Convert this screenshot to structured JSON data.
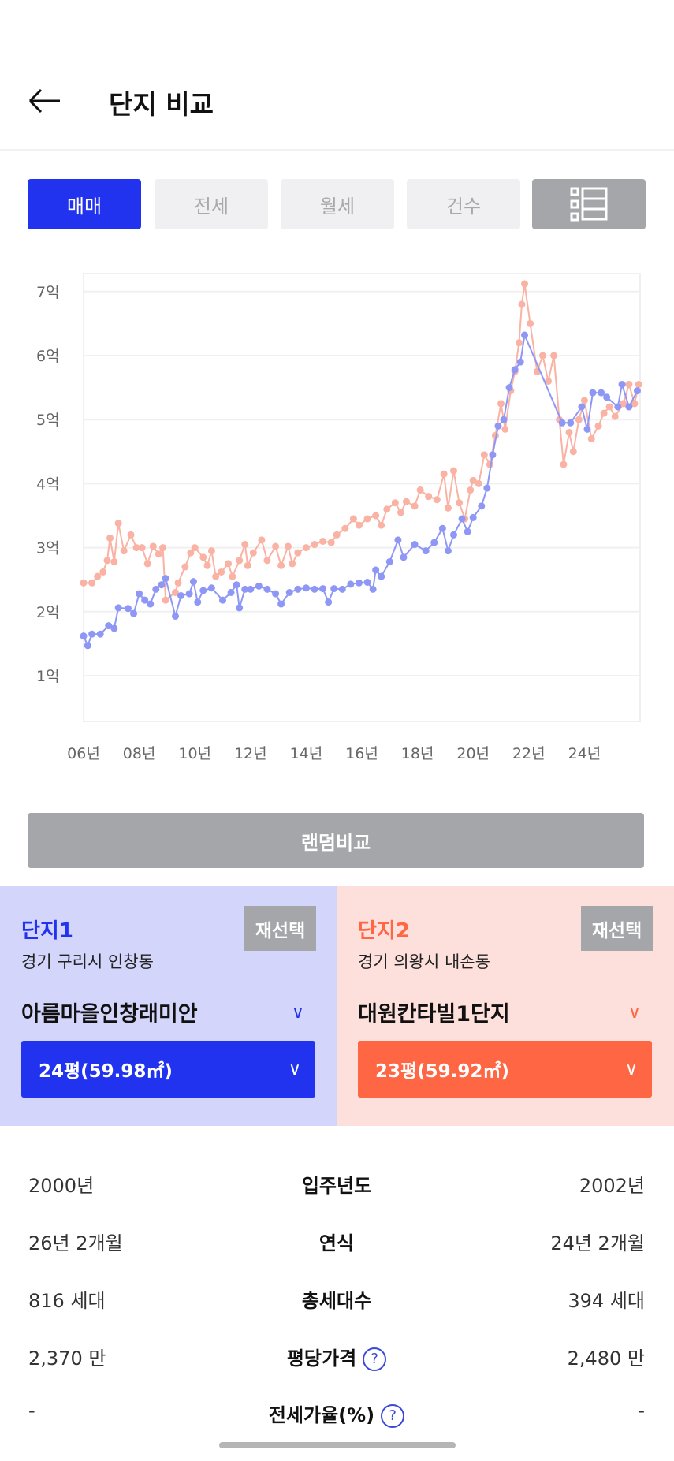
{
  "header": {
    "title": "단지 비교",
    "back_icon": "arrow-left-icon"
  },
  "tabs": [
    {
      "label": "매매",
      "active": true
    },
    {
      "label": "전세"
    },
    {
      "label": "월세"
    },
    {
      "label": "건수"
    }
  ],
  "list_view_icon": "list-view-icon",
  "chart_data": {
    "type": "line",
    "y_ticks": [
      "1억",
      "2억",
      "3억",
      "4억",
      "5억",
      "6억",
      "7억"
    ],
    "x_ticks": [
      "06년",
      "08년",
      "10년",
      "12년",
      "14년",
      "16년",
      "18년",
      "20년",
      "22년",
      "24년"
    ],
    "xlim": [
      2006,
      2026
    ],
    "ylim": [
      0.3,
      7.35
    ],
    "grid": true,
    "series": [
      {
        "color": "#8e97f5",
        "points": [
          [
            2006.0,
            1.62
          ],
          [
            2006.15,
            1.47
          ],
          [
            2006.3,
            1.65
          ],
          [
            2006.6,
            1.65
          ],
          [
            2006.9,
            1.78
          ],
          [
            2007.1,
            1.74
          ],
          [
            2007.25,
            2.06
          ],
          [
            2007.6,
            2.05
          ],
          [
            2007.8,
            1.97
          ],
          [
            2008.0,
            2.28
          ],
          [
            2008.2,
            2.18
          ],
          [
            2008.4,
            2.12
          ],
          [
            2008.6,
            2.35
          ],
          [
            2008.8,
            2.42
          ],
          [
            2008.95,
            2.52
          ],
          [
            2009.3,
            1.93
          ],
          [
            2009.5,
            2.25
          ],
          [
            2009.8,
            2.28
          ],
          [
            2009.95,
            2.47
          ],
          [
            2010.1,
            2.15
          ],
          [
            2010.3,
            2.33
          ],
          [
            2010.6,
            2.37
          ],
          [
            2011.0,
            2.18
          ],
          [
            2011.3,
            2.3
          ],
          [
            2011.5,
            2.42
          ],
          [
            2011.6,
            2.06
          ],
          [
            2011.8,
            2.35
          ],
          [
            2012.0,
            2.35
          ],
          [
            2012.3,
            2.4
          ],
          [
            2012.6,
            2.35
          ],
          [
            2012.9,
            2.28
          ],
          [
            2013.1,
            2.12
          ],
          [
            2013.4,
            2.3
          ],
          [
            2013.7,
            2.35
          ],
          [
            2014.0,
            2.37
          ],
          [
            2014.3,
            2.35
          ],
          [
            2014.6,
            2.36
          ],
          [
            2014.8,
            2.15
          ],
          [
            2015.0,
            2.36
          ],
          [
            2015.3,
            2.35
          ],
          [
            2015.6,
            2.43
          ],
          [
            2015.9,
            2.45
          ],
          [
            2016.2,
            2.46
          ],
          [
            2016.4,
            2.35
          ],
          [
            2016.5,
            2.65
          ],
          [
            2016.7,
            2.55
          ],
          [
            2017.0,
            2.78
          ],
          [
            2017.3,
            3.12
          ],
          [
            2017.5,
            2.85
          ],
          [
            2017.9,
            3.05
          ],
          [
            2018.3,
            2.95
          ],
          [
            2018.6,
            3.08
          ],
          [
            2018.9,
            3.3
          ],
          [
            2019.1,
            2.95
          ],
          [
            2019.3,
            3.2
          ],
          [
            2019.6,
            3.45
          ],
          [
            2019.8,
            3.25
          ],
          [
            2020.0,
            3.47
          ],
          [
            2020.3,
            3.65
          ],
          [
            2020.5,
            3.93
          ],
          [
            2020.7,
            4.45
          ],
          [
            2020.9,
            4.9
          ],
          [
            2021.1,
            5.0
          ],
          [
            2021.3,
            5.5
          ],
          [
            2021.5,
            5.78
          ],
          [
            2021.7,
            5.9
          ],
          [
            2021.85,
            6.32
          ],
          [
            2023.2,
            4.95
          ],
          [
            2023.5,
            4.95
          ],
          [
            2023.9,
            5.2
          ],
          [
            2024.1,
            4.85
          ],
          [
            2024.3,
            5.42
          ],
          [
            2024.6,
            5.42
          ],
          [
            2024.8,
            5.35
          ],
          [
            2025.2,
            5.2
          ],
          [
            2025.35,
            5.55
          ],
          [
            2025.6,
            5.2
          ],
          [
            2025.9,
            5.45
          ]
        ]
      },
      {
        "color": "#f9b2a3",
        "points": [
          [
            2006.0,
            2.45
          ],
          [
            2006.3,
            2.45
          ],
          [
            2006.5,
            2.55
          ],
          [
            2006.7,
            2.62
          ],
          [
            2006.85,
            2.8
          ],
          [
            2006.95,
            3.15
          ],
          [
            2007.1,
            2.78
          ],
          [
            2007.25,
            3.38
          ],
          [
            2007.45,
            2.95
          ],
          [
            2007.7,
            3.2
          ],
          [
            2007.9,
            3.0
          ],
          [
            2008.1,
            3.0
          ],
          [
            2008.3,
            2.75
          ],
          [
            2008.5,
            3.02
          ],
          [
            2008.7,
            2.9
          ],
          [
            2008.85,
            3.0
          ],
          [
            2008.95,
            2.18
          ],
          [
            2009.3,
            2.3
          ],
          [
            2009.4,
            2.45
          ],
          [
            2009.65,
            2.7
          ],
          [
            2009.85,
            2.92
          ],
          [
            2010.0,
            3.0
          ],
          [
            2010.3,
            2.85
          ],
          [
            2010.45,
            2.72
          ],
          [
            2010.6,
            2.95
          ],
          [
            2010.75,
            2.55
          ],
          [
            2010.95,
            2.62
          ],
          [
            2011.2,
            2.75
          ],
          [
            2011.35,
            2.55
          ],
          [
            2011.6,
            2.8
          ],
          [
            2011.8,
            3.05
          ],
          [
            2011.9,
            2.72
          ],
          [
            2012.1,
            2.92
          ],
          [
            2012.4,
            3.12
          ],
          [
            2012.6,
            2.8
          ],
          [
            2012.9,
            3.02
          ],
          [
            2013.1,
            2.72
          ],
          [
            2013.35,
            3.02
          ],
          [
            2013.5,
            2.75
          ],
          [
            2013.7,
            2.92
          ],
          [
            2014.0,
            3.0
          ],
          [
            2014.3,
            3.05
          ],
          [
            2014.6,
            3.1
          ],
          [
            2014.9,
            3.08
          ],
          [
            2015.1,
            3.2
          ],
          [
            2015.4,
            3.3
          ],
          [
            2015.7,
            3.45
          ],
          [
            2015.9,
            3.35
          ],
          [
            2016.2,
            3.45
          ],
          [
            2016.5,
            3.5
          ],
          [
            2016.7,
            3.35
          ],
          [
            2016.9,
            3.6
          ],
          [
            2017.2,
            3.7
          ],
          [
            2017.4,
            3.55
          ],
          [
            2017.6,
            3.72
          ],
          [
            2017.9,
            3.65
          ],
          [
            2018.1,
            3.9
          ],
          [
            2018.4,
            3.8
          ],
          [
            2018.7,
            3.75
          ],
          [
            2018.95,
            4.15
          ],
          [
            2019.1,
            3.62
          ],
          [
            2019.3,
            4.2
          ],
          [
            2019.5,
            3.7
          ],
          [
            2019.7,
            3.45
          ],
          [
            2019.9,
            3.9
          ],
          [
            2020.0,
            4.05
          ],
          [
            2020.2,
            4.0
          ],
          [
            2020.4,
            4.45
          ],
          [
            2020.6,
            4.3
          ],
          [
            2020.8,
            4.75
          ],
          [
            2021.0,
            5.25
          ],
          [
            2021.15,
            4.85
          ],
          [
            2021.35,
            5.45
          ],
          [
            2021.5,
            5.75
          ],
          [
            2021.65,
            6.2
          ],
          [
            2021.75,
            6.8
          ],
          [
            2021.85,
            7.12
          ],
          [
            2022.05,
            6.5
          ],
          [
            2022.3,
            5.75
          ],
          [
            2022.5,
            6.0
          ],
          [
            2022.7,
            5.6
          ],
          [
            2022.9,
            6.0
          ],
          [
            2023.1,
            5.0
          ],
          [
            2023.25,
            4.3
          ],
          [
            2023.45,
            4.8
          ],
          [
            2023.6,
            4.5
          ],
          [
            2023.8,
            5.0
          ],
          [
            2024.0,
            5.3
          ],
          [
            2024.25,
            4.7
          ],
          [
            2024.5,
            4.9
          ],
          [
            2024.7,
            5.1
          ],
          [
            2024.9,
            5.2
          ],
          [
            2025.1,
            5.05
          ],
          [
            2025.4,
            5.25
          ],
          [
            2025.6,
            5.55
          ],
          [
            2025.8,
            5.25
          ],
          [
            2025.95,
            5.55
          ]
        ]
      }
    ]
  },
  "random_compare": "랜덤비교",
  "complex1": {
    "label": "단지1",
    "reselect": "재선택",
    "address": "경기 구리시 인창동",
    "name": "아름마을인창래미안",
    "size": "24평(59.98㎡)",
    "color": "#2233f0"
  },
  "complex2": {
    "label": "단지2",
    "reselect": "재선택",
    "address": "경기 의왕시 내손동",
    "name": "대원칸타빌1단지",
    "size": "23평(59.92㎡)",
    "color": "#ff6644"
  },
  "comparison": [
    {
      "label": "입주년도",
      "left": "2000년",
      "right": "2002년",
      "help": false
    },
    {
      "label": "연식",
      "left": "26년 2개월",
      "right": "24년 2개월",
      "help": false
    },
    {
      "label": "총세대수",
      "left": "816 세대",
      "right": "394 세대",
      "help": false
    },
    {
      "label": "평당가격",
      "left": "2,370 만",
      "right": "2,480 만",
      "help": true
    },
    {
      "label": "전세가율(%)",
      "left": "-",
      "right": "-",
      "help": true
    }
  ],
  "help_glyph": "?"
}
